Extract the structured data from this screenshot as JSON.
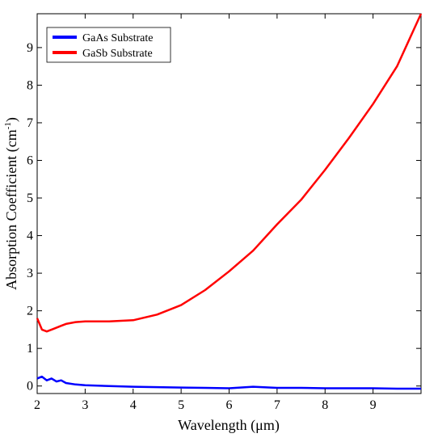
{
  "chart_data": {
    "type": "line",
    "xlabel": "Wavelength (μm)",
    "ylabel_main": "Absorption Coefficient (cm",
    "ylabel_sup": "-1",
    "ylabel_tail": ")",
    "xlim": [
      2,
      10
    ],
    "ylim": [
      -0.2,
      9.9
    ],
    "xticks": [
      2,
      3,
      4,
      5,
      6,
      7,
      8,
      9
    ],
    "yticks": [
      0,
      1,
      2,
      3,
      4,
      5,
      6,
      7,
      8,
      9
    ],
    "grid": false,
    "legend_position": "top-left",
    "series": [
      {
        "name": "GaAs Substrate",
        "color": "#0000ff",
        "x": [
          2.0,
          2.1,
          2.2,
          2.3,
          2.4,
          2.5,
          2.6,
          2.8,
          3.0,
          3.5,
          4.0,
          4.5,
          5.0,
          5.5,
          6.0,
          6.5,
          7.0,
          7.5,
          8.0,
          8.5,
          9.0,
          9.5,
          10.0
        ],
        "values": [
          0.2,
          0.25,
          0.15,
          0.2,
          0.12,
          0.15,
          0.08,
          0.04,
          0.02,
          0.0,
          -0.02,
          -0.03,
          -0.04,
          -0.05,
          -0.06,
          -0.02,
          -0.05,
          -0.05,
          -0.06,
          -0.06,
          -0.06,
          -0.07,
          -0.07
        ]
      },
      {
        "name": "GaSb Substrate",
        "color": "#ff0000",
        "x": [
          2.0,
          2.1,
          2.2,
          2.3,
          2.4,
          2.5,
          2.6,
          2.8,
          3.0,
          3.5,
          4.0,
          4.5,
          5.0,
          5.5,
          6.0,
          6.5,
          7.0,
          7.5,
          8.0,
          8.5,
          9.0,
          9.5,
          10.0
        ],
        "values": [
          1.8,
          1.5,
          1.45,
          1.5,
          1.55,
          1.6,
          1.65,
          1.7,
          1.72,
          1.72,
          1.75,
          1.9,
          2.15,
          2.55,
          3.05,
          3.6,
          4.3,
          4.95,
          5.75,
          6.6,
          7.5,
          8.5,
          9.9
        ]
      }
    ]
  }
}
